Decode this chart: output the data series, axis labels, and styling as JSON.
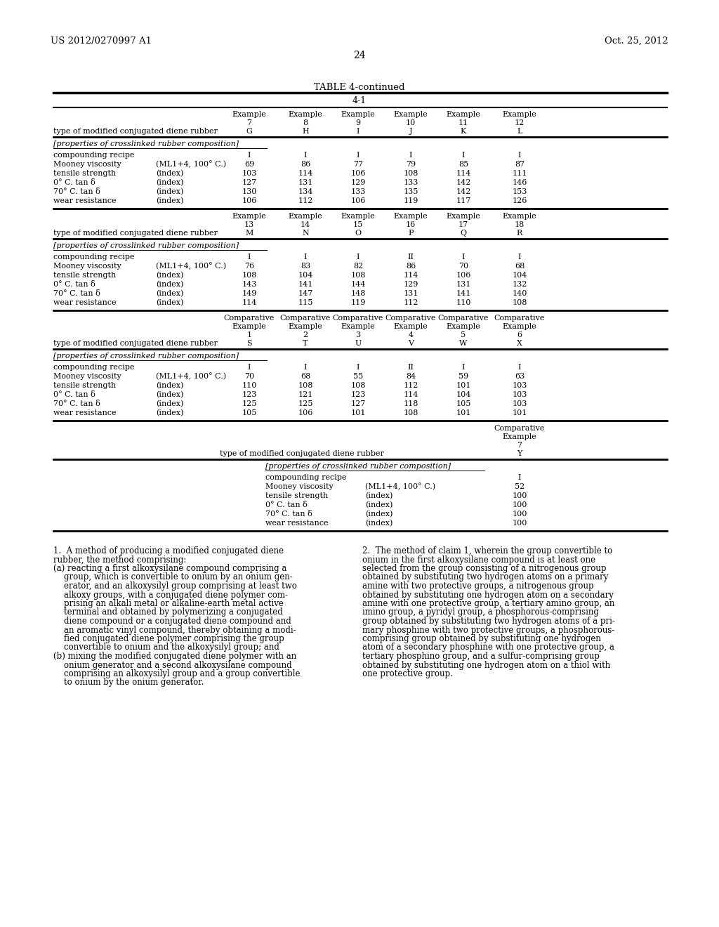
{
  "page_number": "24",
  "patent_number": "US 2012/0270997 A1",
  "patent_date": "Oct. 25, 2012",
  "table_title": "TABLE 4-continued",
  "background_color": "#ffffff",
  "text_color": "#000000",
  "sec1_col_nums": [
    "7",
    "8",
    "9",
    "10",
    "11",
    "12"
  ],
  "sec1_col_letters": [
    "G",
    "H",
    "I",
    "J",
    "K",
    "L"
  ],
  "sec1_rows": [
    {
      "label": "compounding recipe",
      "unit": "",
      "values": [
        "I",
        "I",
        "I",
        "I",
        "I",
        "I"
      ]
    },
    {
      "label": "Mooney viscosity",
      "unit": "(ML1+4, 100° C.)",
      "values": [
        "69",
        "86",
        "77",
        "79",
        "85",
        "87"
      ]
    },
    {
      "label": "tensile strength",
      "unit": "(index)",
      "values": [
        "103",
        "114",
        "106",
        "108",
        "114",
        "111"
      ]
    },
    {
      "label": "0° C. tan δ",
      "unit": "(index)",
      "values": [
        "127",
        "131",
        "129",
        "133",
        "142",
        "146"
      ]
    },
    {
      "label": "70° C. tan δ",
      "unit": "(index)",
      "values": [
        "130",
        "134",
        "133",
        "135",
        "142",
        "153"
      ]
    },
    {
      "label": "wear resistance",
      "unit": "(index)",
      "values": [
        "106",
        "112",
        "106",
        "119",
        "117",
        "126"
      ]
    }
  ],
  "sec2_col_nums": [
    "13",
    "14",
    "15",
    "16",
    "17",
    "18"
  ],
  "sec2_col_letters": [
    "M",
    "N",
    "O",
    "P",
    "Q",
    "R"
  ],
  "sec2_rows": [
    {
      "label": "compounding recipe",
      "unit": "",
      "values": [
        "I",
        "I",
        "I",
        "II",
        "I",
        "I"
      ]
    },
    {
      "label": "Mooney viscosity",
      "unit": "(ML1+4, 100° C.)",
      "values": [
        "76",
        "83",
        "82",
        "86",
        "70",
        "68"
      ]
    },
    {
      "label": "tensile strength",
      "unit": "(index)",
      "values": [
        "108",
        "104",
        "108",
        "114",
        "106",
        "104"
      ]
    },
    {
      "label": "0° C. tan δ",
      "unit": "(index)",
      "values": [
        "143",
        "141",
        "144",
        "129",
        "131",
        "132"
      ]
    },
    {
      "label": "70° C. tan δ",
      "unit": "(index)",
      "values": [
        "149",
        "147",
        "148",
        "131",
        "141",
        "140"
      ]
    },
    {
      "label": "wear resistance",
      "unit": "(index)",
      "values": [
        "114",
        "115",
        "119",
        "112",
        "110",
        "108"
      ]
    }
  ],
  "sec3_col_nums": [
    "1",
    "2",
    "3",
    "4",
    "5",
    "6"
  ],
  "sec3_col_letters": [
    "S",
    "T",
    "U",
    "V",
    "W",
    "X"
  ],
  "sec3_rows": [
    {
      "label": "compounding recipe",
      "unit": "",
      "values": [
        "I",
        "I",
        "I",
        "II",
        "I",
        "I"
      ]
    },
    {
      "label": "Mooney viscosity",
      "unit": "(ML1+4, 100° C.)",
      "values": [
        "70",
        "68",
        "55",
        "84",
        "59",
        "63"
      ]
    },
    {
      "label": "tensile strength",
      "unit": "(index)",
      "values": [
        "110",
        "108",
        "108",
        "112",
        "101",
        "103"
      ]
    },
    {
      "label": "0° C. tan δ",
      "unit": "(index)",
      "values": [
        "123",
        "121",
        "123",
        "114",
        "104",
        "103"
      ]
    },
    {
      "label": "70° C. tan δ",
      "unit": "(index)",
      "values": [
        "125",
        "125",
        "127",
        "118",
        "105",
        "103"
      ]
    },
    {
      "label": "wear resistance",
      "unit": "(index)",
      "values": [
        "105",
        "106",
        "101",
        "108",
        "101",
        "101"
      ]
    }
  ],
  "ce7_rows": [
    {
      "label": "compounding recipe",
      "unit": "",
      "value": "I"
    },
    {
      "label": "Mooney viscosity",
      "unit": "(ML1+4, 100° C.)",
      "value": "52"
    },
    {
      "label": "tensile strength",
      "unit": "(index)",
      "value": "100"
    },
    {
      "label": "0° C. tan δ",
      "unit": "(index)",
      "value": "100"
    },
    {
      "label": "70° C. tan δ",
      "unit": "(index)",
      "value": "100"
    },
    {
      "label": "wear resistance",
      "unit": "(index)",
      "value": "100"
    }
  ],
  "claim1_intro": "1.  A method of producing a modified conjugated diene rubber, the method comprising:",
  "claim1_a": "(a) reacting a first alkoxysilane compound comprising a group, which is convertible to onium by an onium gen-erator, and an alkoxysilyl group comprising at least two alkoxy groups, with a conjugated diene polymer com-prising an alkali metal or alkaline-earth metal active terminal and obtained by polymerizing a conjugated diene compound or a conjugated diene compound and an aromatic vinyl compound, thereby obtaining a modi-fied conjugated diene polymer comprising the group convertible to onium and the alkoxysilyl group; and",
  "claim1_b": "(b) mixing the modified conjugated diene polymer with an onium generator and a second alkoxysilane compound comprising an alkoxysilyl group and a group convertible to onium by the onium generator.",
  "claim2": "2.  The method of claim 1, wherein the group convertible to onium in the first alkoxysilane compound is at least one selected from the group consisting of a nitrogenous group obtained by substituting two hydrogen atoms on a primary amine with two protective groups, a nitrogenous group obtained by substituting one hydrogen atom on a secondary amine with one protective group, a tertiary amino group, an imino group, a pyridyl group, a phosphorous-comprising group obtained by substituting two hydrogen atoms of a pri-mary phosphine with two protective groups, a phosphorous-comprising group obtained by substituting one hydrogen atom of a secondary phosphine with one protective group, a tertiary phosphino group, and a sulfur-comprising group obtained by substituting one hydrogen atom on a thiol with one protective group."
}
